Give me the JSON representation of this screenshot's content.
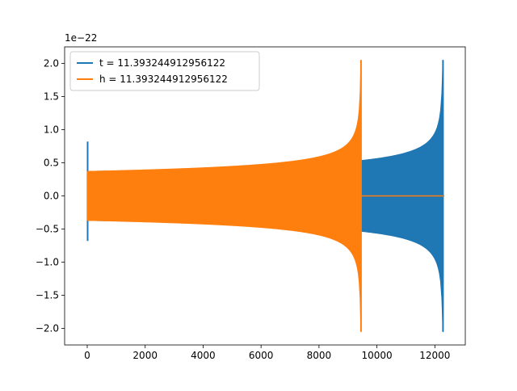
{
  "chart_data": {
    "type": "line",
    "title": "",
    "xlabel": "",
    "ylabel": "",
    "y_scale_label": "1e−22",
    "xlim": [
      -780,
      13050
    ],
    "ylim": [
      -2.25,
      2.25
    ],
    "x_ticks": [
      0,
      2000,
      4000,
      6000,
      8000,
      10000,
      12000
    ],
    "x_tick_labels": [
      "0",
      "2000",
      "4000",
      "6000",
      "8000",
      "10000",
      "12000"
    ],
    "y_ticks": [
      -2.0,
      -1.5,
      -1.0,
      -0.5,
      0.0,
      0.5,
      1.0,
      1.5,
      2.0
    ],
    "y_tick_labels": [
      "−2.0",
      "−1.5",
      "−1.0",
      "−0.5",
      "0.0",
      "0.5",
      "1.0",
      "1.5",
      "2.0"
    ],
    "grid": false,
    "legend_position": "top-left",
    "series": [
      {
        "name": "t = 11.393244912956122",
        "color": "#1f77b4",
        "kind": "chirp",
        "x_start": 0,
        "x_merger": 12280,
        "x_end": 12320,
        "start_amplitude": 0.37,
        "start_spike": 0.82,
        "start_spike_min": -0.68,
        "peak_amplitude": 2.05,
        "post_merger_value": 0.0
      },
      {
        "name": "h = 11.393244912956122",
        "color": "#ff7f0e",
        "kind": "chirp",
        "x_start": 0,
        "x_merger": 9450,
        "x_end": 12320,
        "start_amplitude": 0.37,
        "start_spike": 0.0,
        "start_spike_min": 0.0,
        "peak_amplitude": 2.05,
        "post_merger_value": 0.0
      }
    ]
  }
}
